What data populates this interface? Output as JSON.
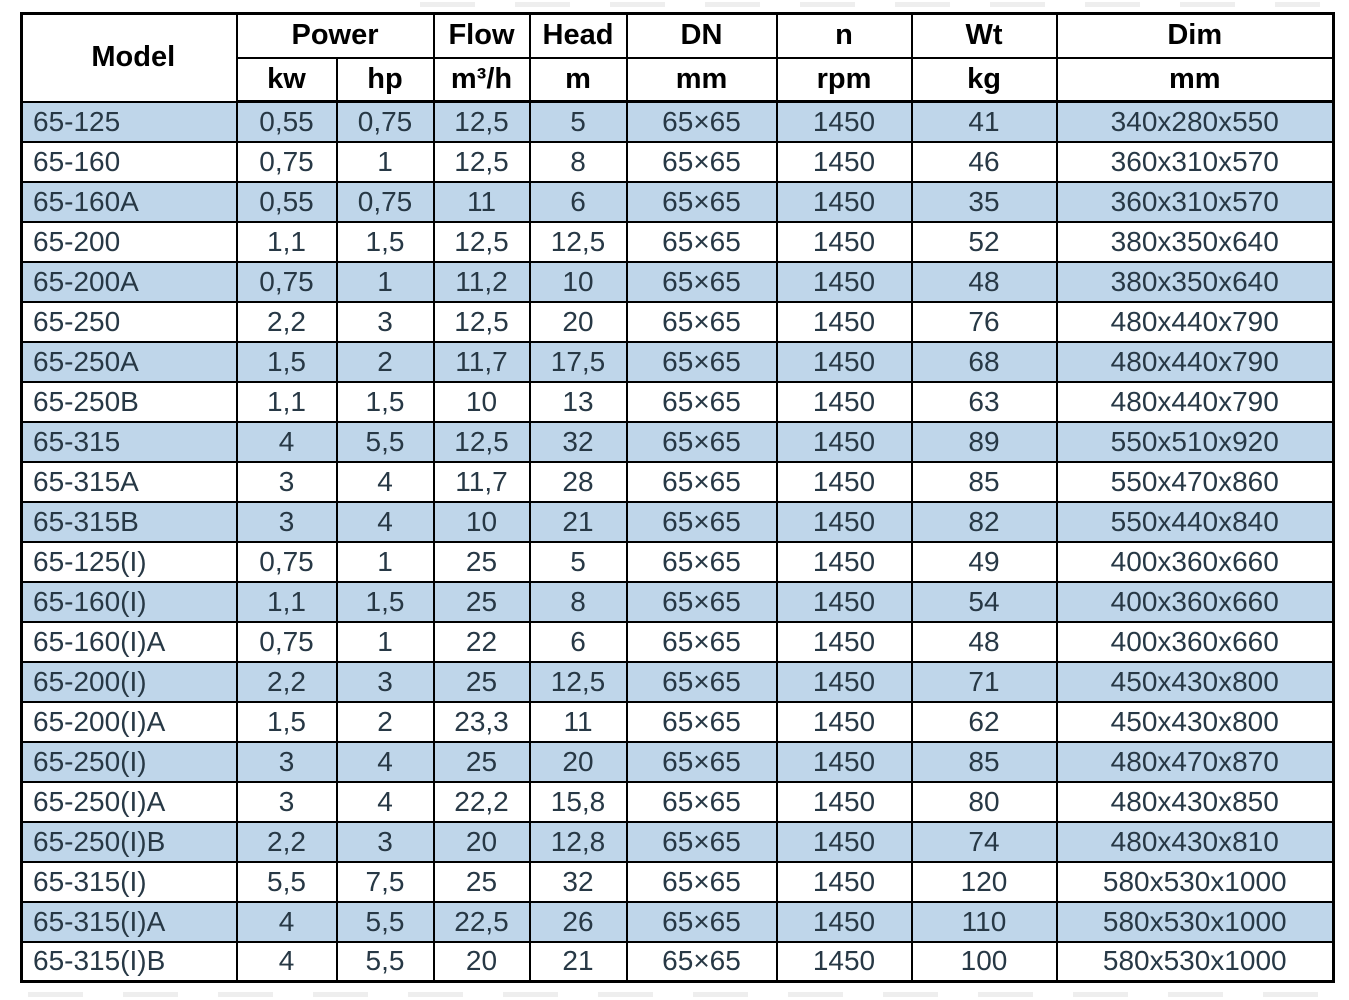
{
  "title": "Pump specification table",
  "colors": {
    "background": "#ffffff",
    "row_alt": "#bfd6ea",
    "data_text": "#273845",
    "header_text": "#000000",
    "border": "#000000"
  },
  "table": {
    "header": {
      "model": "Model",
      "power": "Power",
      "flow": "Flow",
      "head": "Head",
      "dn": "DN",
      "n": "n",
      "wt": "Wt",
      "dim": "Dim"
    },
    "units": {
      "kw": "kw",
      "hp": "hp",
      "flow": "m³/h",
      "head": "m",
      "dn": "mm",
      "n": "rpm",
      "wt": "kg",
      "dim": "mm"
    },
    "rows": [
      [
        "65-125",
        "0,55",
        "0,75",
        "12,5",
        "5",
        "65×65",
        "1450",
        "41",
        "340x280x550"
      ],
      [
        "65-160",
        "0,75",
        "1",
        "12,5",
        "8",
        "65×65",
        "1450",
        "46",
        "360x310x570"
      ],
      [
        "65-160A",
        "0,55",
        "0,75",
        "11",
        "6",
        "65×65",
        "1450",
        "35",
        "360x310x570"
      ],
      [
        "65-200",
        "1,1",
        "1,5",
        "12,5",
        "12,5",
        "65×65",
        "1450",
        "52",
        "380x350x640"
      ],
      [
        "65-200A",
        "0,75",
        "1",
        "11,2",
        "10",
        "65×65",
        "1450",
        "48",
        "380x350x640"
      ],
      [
        "65-250",
        "2,2",
        "3",
        "12,5",
        "20",
        "65×65",
        "1450",
        "76",
        "480x440x790"
      ],
      [
        "65-250A",
        "1,5",
        "2",
        "11,7",
        "17,5",
        "65×65",
        "1450",
        "68",
        "480x440x790"
      ],
      [
        "65-250B",
        "1,1",
        "1,5",
        "10",
        "13",
        "65×65",
        "1450",
        "63",
        "480x440x790"
      ],
      [
        "65-315",
        "4",
        "5,5",
        "12,5",
        "32",
        "65×65",
        "1450",
        "89",
        "550x510x920"
      ],
      [
        "65-315A",
        "3",
        "4",
        "11,7",
        "28",
        "65×65",
        "1450",
        "85",
        "550x470x860"
      ],
      [
        "65-315B",
        "3",
        "4",
        "10",
        "21",
        "65×65",
        "1450",
        "82",
        "550x440x840"
      ],
      [
        "65-125(I)",
        "0,75",
        "1",
        "25",
        "5",
        "65×65",
        "1450",
        "49",
        "400x360x660"
      ],
      [
        "65-160(I)",
        "1,1",
        "1,5",
        "25",
        "8",
        "65×65",
        "1450",
        "54",
        "400x360x660"
      ],
      [
        "65-160(I)A",
        "0,75",
        "1",
        "22",
        "6",
        "65×65",
        "1450",
        "48",
        "400x360x660"
      ],
      [
        "65-200(I)",
        "2,2",
        "3",
        "25",
        "12,5",
        "65×65",
        "1450",
        "71",
        "450x430x800"
      ],
      [
        "65-200(I)A",
        "1,5",
        "2",
        "23,3",
        "11",
        "65×65",
        "1450",
        "62",
        "450x430x800"
      ],
      [
        "65-250(I)",
        "3",
        "4",
        "25",
        "20",
        "65×65",
        "1450",
        "85",
        "480x470x870"
      ],
      [
        "65-250(I)A",
        "3",
        "4",
        "22,2",
        "15,8",
        "65×65",
        "1450",
        "80",
        "480x430x850"
      ],
      [
        "65-250(I)B",
        "2,2",
        "3",
        "20",
        "12,8",
        "65×65",
        "1450",
        "74",
        "480x430x810"
      ],
      [
        "65-315(I)",
        "5,5",
        "7,5",
        "25",
        "32",
        "65×65",
        "1450",
        "120",
        "580x530x1000"
      ],
      [
        "65-315(I)A",
        "4",
        "5,5",
        "22,5",
        "26",
        "65×65",
        "1450",
        "110",
        "580x530x1000"
      ],
      [
        "65-315(I)B",
        "4",
        "5,5",
        "20",
        "21",
        "65×65",
        "1450",
        "100",
        "580x530x1000"
      ]
    ]
  }
}
